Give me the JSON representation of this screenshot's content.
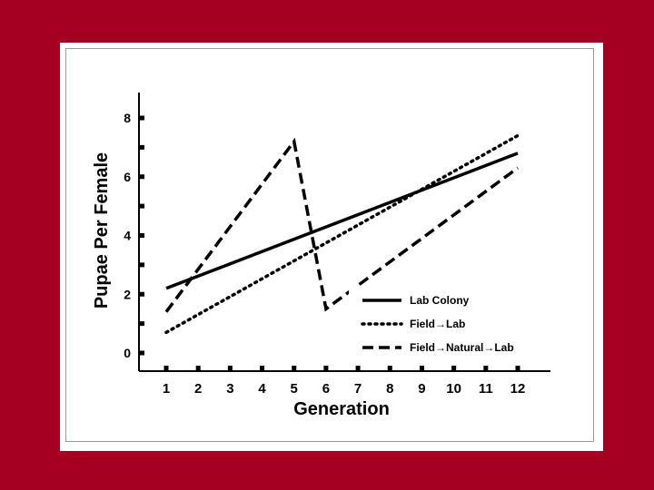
{
  "colors": {
    "background": "#a50021",
    "panel": "#ffffff",
    "ink": "#000000"
  },
  "chart_data": {
    "type": "line",
    "title": "",
    "xlabel": "Generation",
    "ylabel": "Pupae Per Female",
    "x": [
      1,
      2,
      3,
      4,
      5,
      6,
      7,
      8,
      9,
      10,
      11,
      12
    ],
    "xlim": [
      1,
      12
    ],
    "ylim": [
      0,
      8
    ],
    "y_ticks_labeled": [
      "0",
      "2",
      "4",
      "6",
      "8"
    ],
    "x_tick_labels": [
      "1",
      "2",
      "3",
      "4",
      "5",
      "6",
      "7",
      "8",
      "9",
      "10",
      "11",
      "12"
    ],
    "grid": false,
    "legend_position": "bottom-right",
    "series": [
      {
        "name": "Lab Colony",
        "style": "solid",
        "x": [
          1,
          12
        ],
        "y": [
          2.2,
          6.8
        ]
      },
      {
        "name": "Field→Lab",
        "style": "dotted",
        "x": [
          1,
          12
        ],
        "y": [
          0.7,
          7.4
        ]
      },
      {
        "name": "Field→Natural→Lab",
        "style": "dashed",
        "x": [
          1,
          5,
          6,
          12
        ],
        "y": [
          1.4,
          7.2,
          1.5,
          6.3
        ]
      }
    ]
  }
}
